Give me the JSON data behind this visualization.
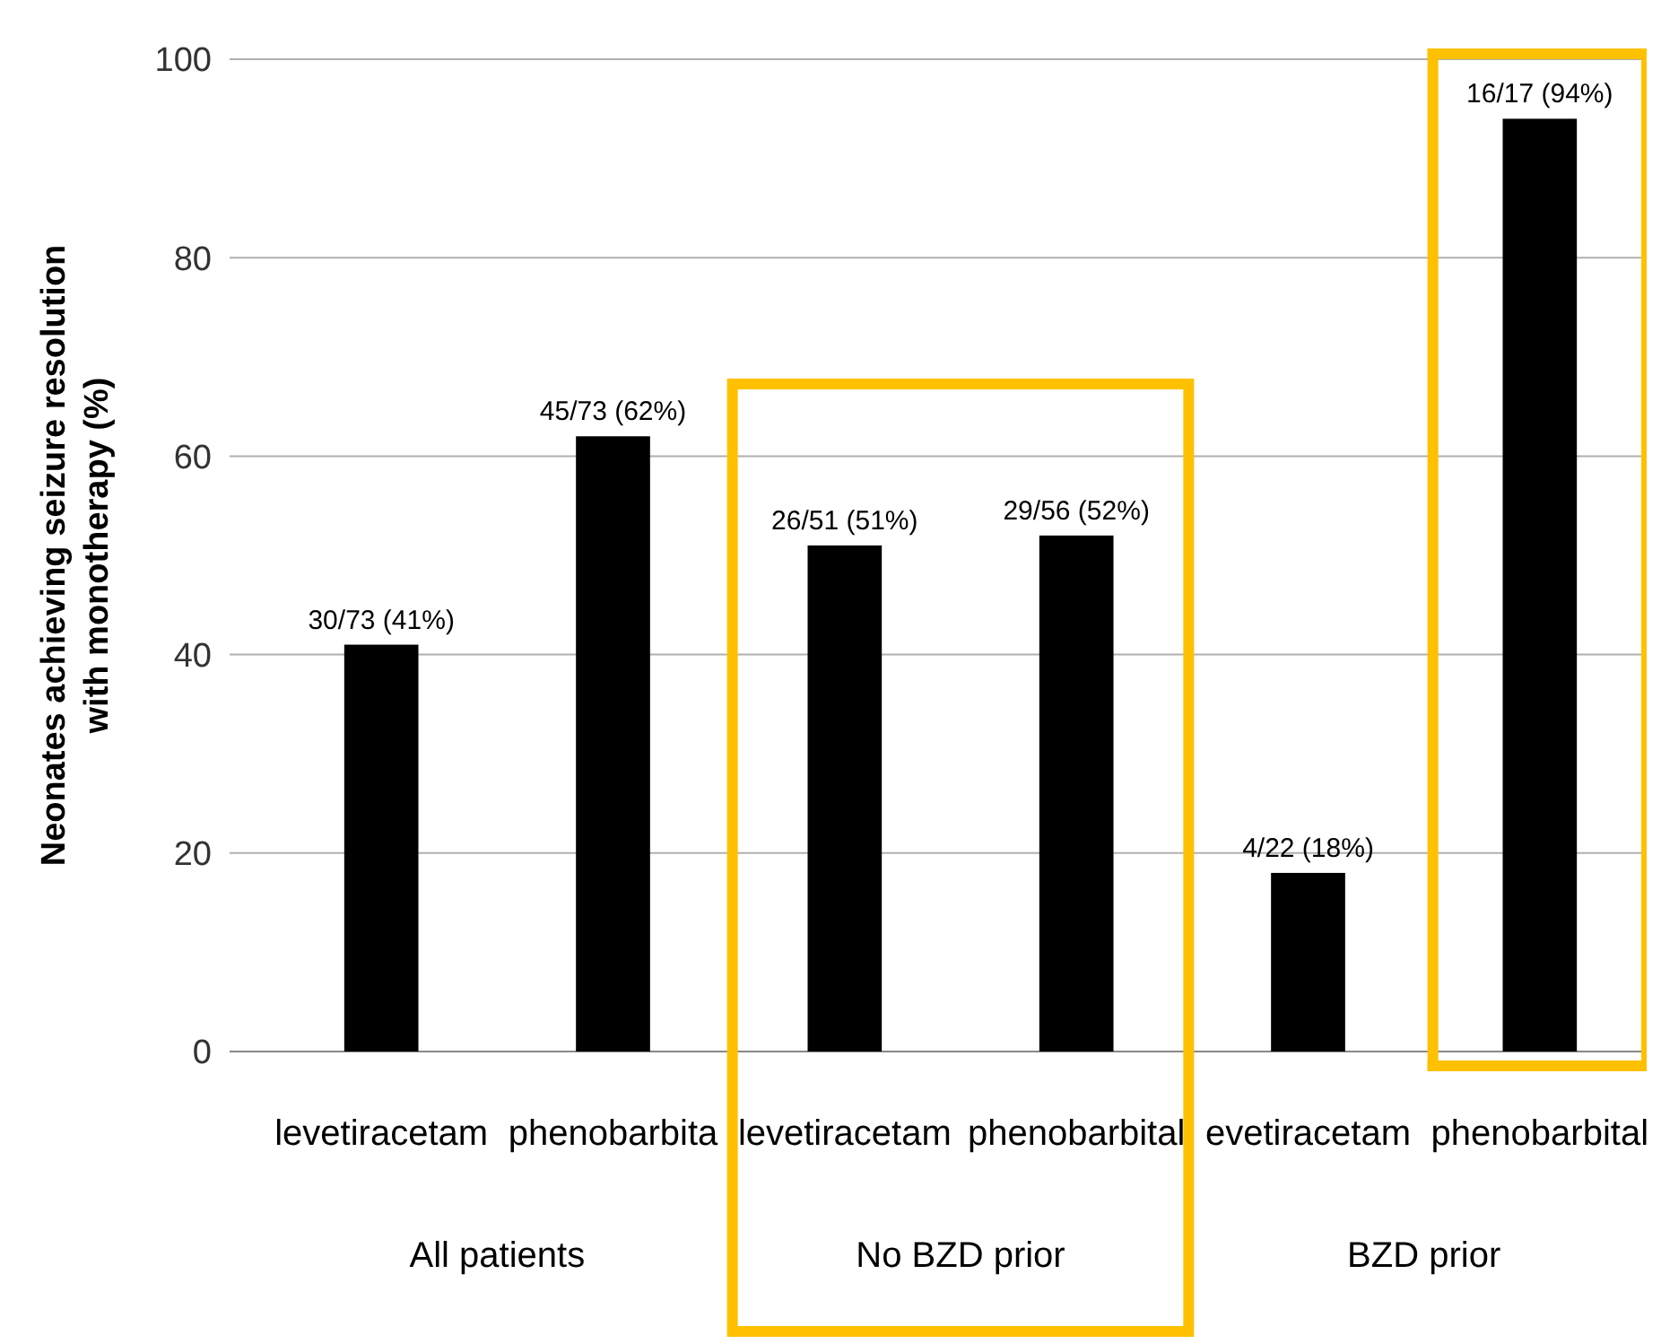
{
  "chart_data": {
    "type": "bar",
    "categories": [
      "levetiracetam",
      "phenobarbita",
      "levetiracetam",
      "phenobarbital",
      "evetiracetam",
      "phenobarbital"
    ],
    "values": [
      41,
      62,
      51,
      52,
      18,
      94
    ],
    "value_labels": [
      "30/73 (41%)",
      "45/73 (62%)",
      "26/51 (51%)",
      "29/56 (52%)",
      "4/22 (18%)",
      "16/17 (94%)"
    ],
    "color": "#000000",
    "ylabel": "Neonates achieving seizure resolution with monotherapy (%)",
    "ylim": [
      0,
      100
    ],
    "yticks": [
      0,
      20,
      40,
      60,
      80,
      100
    ],
    "grid": "y",
    "annotations": [
      "All patients",
      "No BZD prior",
      "BZD prior"
    ]
  }
}
